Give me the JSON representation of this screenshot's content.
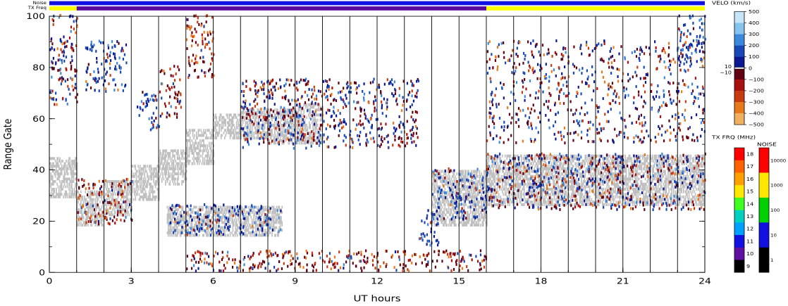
{
  "chart_data": {
    "type": "heatmap",
    "xlabel": "UT hours",
    "ylabel": "Range Gate",
    "xlim": [
      0,
      24
    ],
    "ylim": [
      0,
      100
    ],
    "x_ticks": [
      "0",
      "3",
      "6",
      "9",
      "12",
      "15",
      "18",
      "21",
      "24"
    ],
    "y_ticks": [
      "0",
      "20",
      "40",
      "60",
      "80",
      "100"
    ],
    "status_bars": [
      {
        "label": "Noise",
        "segments": [
          {
            "from": 0,
            "to": 24,
            "color": "#1010e0"
          }
        ]
      },
      {
        "label": "TX Freq",
        "segments": [
          {
            "from": 0,
            "to": 1,
            "color": "#ffff00"
          },
          {
            "from": 1,
            "to": 16,
            "color": "#5a0aa0"
          },
          {
            "from": 16,
            "to": 24,
            "color": "#ffff00"
          }
        ]
      }
    ],
    "velocity_colorbar": {
      "title": "VELO (km/s)",
      "ticks": [
        "500",
        "400",
        "300",
        "200",
        "100",
        "0",
        "−100",
        "−200",
        "−300",
        "−400",
        "−500"
      ],
      "inset_labels": [
        "10",
        "−10"
      ],
      "colors": [
        "#c6e6f8",
        "#84c4ee",
        "#3c88dc",
        "#1848b8",
        "#0c1890",
        "#600010",
        "#a81010",
        "#c83a10",
        "#e8781c",
        "#f0b060"
      ]
    },
    "frequency_colorbar": {
      "title": "TX FRQ (MHz)",
      "ticks": [
        "18",
        "17",
        "16",
        "15",
        "14",
        "13",
        "12",
        "11",
        "10",
        "9"
      ],
      "colors": [
        "#ff0000",
        "#ff6000",
        "#ffa000",
        "#ffe800",
        "#40ff20",
        "#00d0c0",
        "#00a0ff",
        "#1010e0",
        "#6010a0",
        "#000000"
      ]
    },
    "noise_colorbar": {
      "title": "NOISE",
      "ticks": [
        "10000",
        "1000",
        "100",
        "10",
        "1"
      ],
      "colors": [
        "#ff0000",
        "#ffe800",
        "#00d000",
        "#1010e0",
        "#000000"
      ]
    },
    "vertical_markers_hours": [
      1,
      2,
      3,
      4,
      5,
      6,
      7,
      8,
      9,
      10,
      11,
      12,
      13,
      14,
      15,
      16,
      17,
      18,
      19,
      20,
      21,
      22,
      23
    ],
    "ground_scatter_regions": [
      {
        "x": [
          0,
          1
        ],
        "y": [
          29,
          45
        ]
      },
      {
        "x": [
          1,
          2
        ],
        "y": [
          18,
          32
        ]
      },
      {
        "x": [
          2,
          3
        ],
        "y": [
          22,
          36
        ]
      },
      {
        "x": [
          3,
          4
        ],
        "y": [
          28,
          42
        ]
      },
      {
        "x": [
          4,
          5
        ],
        "y": [
          34,
          48
        ]
      },
      {
        "x": [
          5,
          6
        ],
        "y": [
          42,
          56
        ]
      },
      {
        "x": [
          6,
          7
        ],
        "y": [
          52,
          62
        ]
      },
      {
        "x": [
          7,
          8
        ],
        "y": [
          52,
          64
        ]
      },
      {
        "x": [
          8,
          9
        ],
        "y": [
          50,
          64
        ]
      },
      {
        "x": [
          9,
          10
        ],
        "y": [
          50,
          66
        ]
      },
      {
        "x": [
          4.3,
          8.5
        ],
        "y": [
          14,
          26
        ]
      },
      {
        "x": [
          14,
          16
        ],
        "y": [
          18,
          40
        ]
      },
      {
        "x": [
          16,
          24
        ],
        "y": [
          26,
          46
        ]
      }
    ],
    "velocity_clusters": [
      {
        "x": [
          0,
          1
        ],
        "y": [
          65,
          100
        ],
        "v_sign": "mixed"
      },
      {
        "x": [
          1.3,
          2.8
        ],
        "y": [
          70,
          90
        ],
        "v_sign": "positive"
      },
      {
        "x": [
          3.2,
          4
        ],
        "y": [
          55,
          70
        ],
        "v_sign": "positive"
      },
      {
        "x": [
          4,
          4.8
        ],
        "y": [
          60,
          80
        ],
        "v_sign": "negative"
      },
      {
        "x": [
          5,
          6
        ],
        "y": [
          75,
          100
        ],
        "v_sign": "negative"
      },
      {
        "x": [
          1,
          3
        ],
        "y": [
          18,
          36
        ],
        "v_sign": "negative"
      },
      {
        "x": [
          4.3,
          8.5
        ],
        "y": [
          14,
          26
        ],
        "v_sign": "positive"
      },
      {
        "x": [
          7,
          13.5
        ],
        "y": [
          48,
          75
        ],
        "v_sign": "mixed"
      },
      {
        "x": [
          13.5,
          14.3
        ],
        "y": [
          10,
          24
        ],
        "v_sign": "positive"
      },
      {
        "x": [
          14,
          16
        ],
        "y": [
          20,
          40
        ],
        "v_sign": "positive"
      },
      {
        "x": [
          5,
          16
        ],
        "y": [
          0,
          8
        ],
        "v_sign": "negative"
      },
      {
        "x": [
          16,
          24
        ],
        "y": [
          24,
          46
        ],
        "v_sign": "mixed"
      },
      {
        "x": [
          16,
          24
        ],
        "y": [
          50,
          90
        ],
        "v_sign": "mixed"
      },
      {
        "x": [
          23,
          24
        ],
        "y": [
          80,
          100
        ],
        "v_sign": "positive"
      }
    ]
  }
}
